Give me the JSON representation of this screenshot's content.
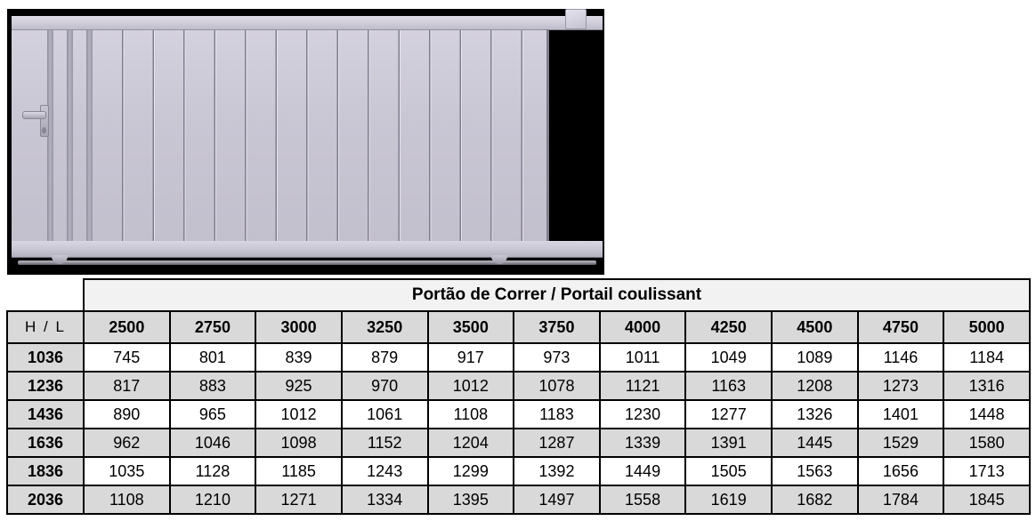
{
  "gate_figure": {
    "description": "3D render of a grey aluminium sliding gate with vertical planks, handle and lock on the left stile, top guide rail with roller block, bottom rail with wheels on a ground track, on a black background",
    "colors": {
      "background": "#000000",
      "panel": "#c9c6d4",
      "panel_line": "#7c798b",
      "rail": "#cfccd9",
      "ground_track": "#8a8893"
    }
  },
  "table": {
    "title": "Portão de Correr / Portail coulissant",
    "corner_label": "H / L",
    "col_headers": [
      "2500",
      "2750",
      "3000",
      "3250",
      "3500",
      "3750",
      "4000",
      "4250",
      "4500",
      "4750",
      "5000"
    ],
    "rows": [
      {
        "h": "1036",
        "values": [
          "745",
          "801",
          "839",
          "879",
          "917",
          "973",
          "1011",
          "1049",
          "1089",
          "1146",
          "1184"
        ]
      },
      {
        "h": "1236",
        "values": [
          "817",
          "883",
          "925",
          "970",
          "1012",
          "1078",
          "1121",
          "1163",
          "1208",
          "1273",
          "1316"
        ]
      },
      {
        "h": "1436",
        "values": [
          "890",
          "965",
          "1012",
          "1061",
          "1108",
          "1183",
          "1230",
          "1277",
          "1326",
          "1401",
          "1448"
        ]
      },
      {
        "h": "1636",
        "values": [
          "962",
          "1046",
          "1098",
          "1152",
          "1204",
          "1287",
          "1339",
          "1391",
          "1445",
          "1529",
          "1580"
        ]
      },
      {
        "h": "1836",
        "values": [
          "1035",
          "1128",
          "1185",
          "1243",
          "1299",
          "1392",
          "1449",
          "1505",
          "1563",
          "1656",
          "1713"
        ]
      },
      {
        "h": "2036",
        "values": [
          "1108",
          "1210",
          "1271",
          "1334",
          "1395",
          "1497",
          "1558",
          "1619",
          "1682",
          "1784",
          "1845"
        ]
      }
    ],
    "colors": {
      "title_bg": "#f2f2f2",
      "header_bg": "#d9d9d9",
      "shade_bg": "#d9d9d9",
      "row_bg": "#ffffff",
      "border": "#000000",
      "text": "#000000"
    }
  }
}
